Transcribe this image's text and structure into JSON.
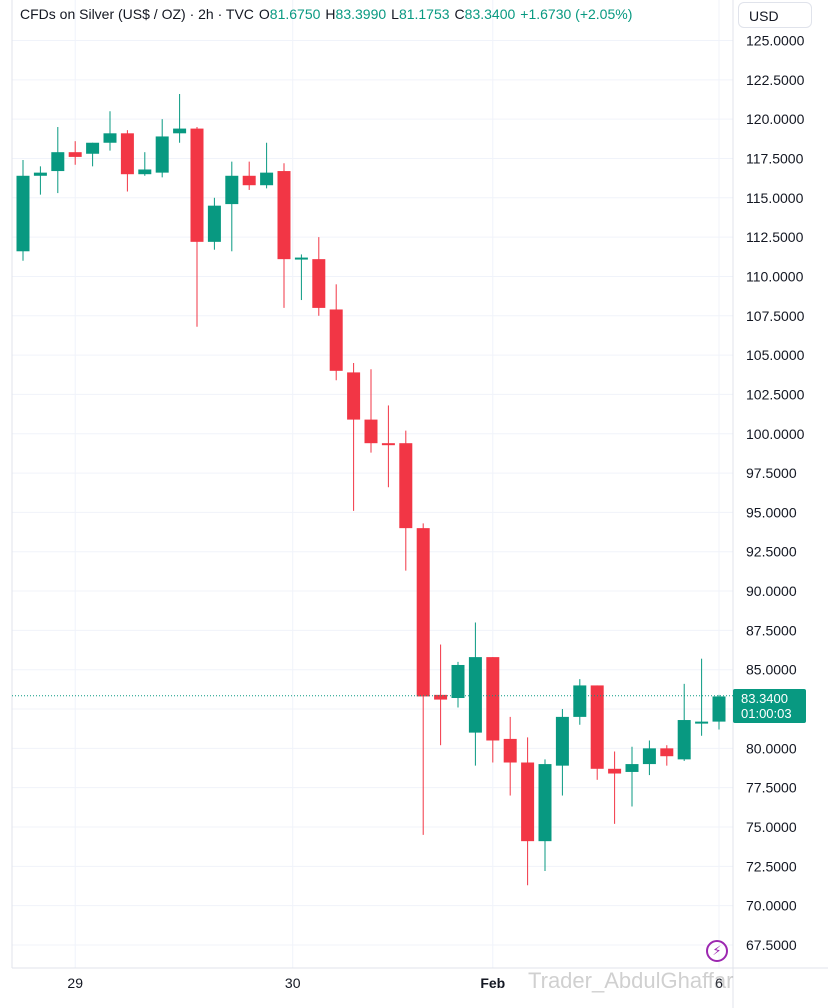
{
  "header": {
    "symbol": "CFDs on Silver (US$ / OZ) · 2h · TVC",
    "open_label": "O",
    "open": "81.6750",
    "high_label": "H",
    "high": "83.3990",
    "low_label": "L",
    "low": "81.1753",
    "close_label": "C",
    "close": "83.3400",
    "change": "+1.6730 (+2.05%)"
  },
  "currency_button": "USD",
  "price_tag": {
    "price": "83.3400",
    "countdown": "01:00:03"
  },
  "watermark": "Trader_AbdulGhaffar",
  "colors": {
    "up": "#089981",
    "down": "#f23645",
    "grid": "#f0f3fa",
    "text": "#131722",
    "accent": "#9c27b0"
  },
  "icons": {
    "alert": "lightning-bolt-icon"
  },
  "chart_data": {
    "type": "candlestick",
    "title": "CFDs on Silver (US$ / OZ) · 2h · TVC",
    "ylim": [
      66.0,
      126.5
    ],
    "y_ticks": [
      "125.0000",
      "122.5000",
      "120.0000",
      "117.5000",
      "115.0000",
      "112.5000",
      "110.0000",
      "107.5000",
      "105.0000",
      "102.5000",
      "100.0000",
      "97.5000",
      "95.0000",
      "92.5000",
      "90.0000",
      "87.5000",
      "85.0000",
      "82.5000",
      "80.0000",
      "77.5000",
      "75.0000",
      "72.5000",
      "70.0000",
      "67.5000"
    ],
    "x_labels": [
      {
        "label": "29",
        "index": 3
      },
      {
        "label": "30",
        "index": 15.5
      },
      {
        "label": "Feb",
        "index": 27
      },
      {
        "label": "6",
        "index": 40
      }
    ],
    "last_price": 83.34,
    "candles": [
      {
        "o": 111.6,
        "h": 117.4,
        "l": 111.0,
        "c": 116.4
      },
      {
        "o": 116.4,
        "h": 117.0,
        "l": 115.2,
        "c": 116.6
      },
      {
        "o": 116.7,
        "h": 119.5,
        "l": 115.3,
        "c": 117.9
      },
      {
        "o": 117.9,
        "h": 118.6,
        "l": 117.1,
        "c": 117.6
      },
      {
        "o": 117.8,
        "h": 118.5,
        "l": 117.0,
        "c": 118.5
      },
      {
        "o": 118.5,
        "h": 120.5,
        "l": 118.0,
        "c": 119.1
      },
      {
        "o": 119.1,
        "h": 119.3,
        "l": 115.4,
        "c": 116.5
      },
      {
        "o": 116.5,
        "h": 117.9,
        "l": 116.4,
        "c": 116.8
      },
      {
        "o": 116.6,
        "h": 120.0,
        "l": 116.3,
        "c": 118.9
      },
      {
        "o": 119.1,
        "h": 121.6,
        "l": 118.5,
        "c": 119.4
      },
      {
        "o": 119.4,
        "h": 119.5,
        "l": 106.8,
        "c": 112.2
      },
      {
        "o": 112.2,
        "h": 115.0,
        "l": 111.7,
        "c": 114.5
      },
      {
        "o": 114.6,
        "h": 117.3,
        "l": 111.6,
        "c": 116.4
      },
      {
        "o": 116.4,
        "h": 117.3,
        "l": 115.5,
        "c": 115.8
      },
      {
        "o": 115.8,
        "h": 118.5,
        "l": 115.6,
        "c": 116.6
      },
      {
        "o": 116.7,
        "h": 117.2,
        "l": 108.0,
        "c": 111.1
      },
      {
        "o": 111.1,
        "h": 111.4,
        "l": 108.5,
        "c": 111.2
      },
      {
        "o": 111.1,
        "h": 112.5,
        "l": 107.5,
        "c": 108.0
      },
      {
        "o": 107.9,
        "h": 109.5,
        "l": 103.4,
        "c": 104.0
      },
      {
        "o": 103.9,
        "h": 104.5,
        "l": 95.1,
        "c": 100.9
      },
      {
        "o": 100.9,
        "h": 104.1,
        "l": 98.8,
        "c": 99.4
      },
      {
        "o": 99.4,
        "h": 101.8,
        "l": 96.6,
        "c": 99.3
      },
      {
        "o": 99.4,
        "h": 100.2,
        "l": 91.3,
        "c": 94.0
      },
      {
        "o": 94.0,
        "h": 94.3,
        "l": 74.5,
        "c": 83.3
      },
      {
        "o": 83.4,
        "h": 86.6,
        "l": 80.2,
        "c": 83.1
      },
      {
        "o": 83.2,
        "h": 85.5,
        "l": 82.6,
        "c": 85.3
      },
      {
        "o": 81.0,
        "h": 88.0,
        "l": 78.9,
        "c": 85.8
      },
      {
        "o": 85.8,
        "h": 85.8,
        "l": 79.1,
        "c": 80.5
      },
      {
        "o": 80.6,
        "h": 82.0,
        "l": 77.0,
        "c": 79.1
      },
      {
        "o": 79.1,
        "h": 80.7,
        "l": 71.3,
        "c": 74.1
      },
      {
        "o": 74.1,
        "h": 79.3,
        "l": 72.2,
        "c": 79.0
      },
      {
        "o": 78.9,
        "h": 82.5,
        "l": 77.0,
        "c": 82.0
      },
      {
        "o": 82.0,
        "h": 84.4,
        "l": 81.5,
        "c": 84.0
      },
      {
        "o": 84.0,
        "h": 84.0,
        "l": 78.0,
        "c": 78.7
      },
      {
        "o": 78.7,
        "h": 79.8,
        "l": 75.2,
        "c": 78.4
      },
      {
        "o": 78.5,
        "h": 80.1,
        "l": 76.3,
        "c": 79.0
      },
      {
        "o": 79.0,
        "h": 80.5,
        "l": 78.3,
        "c": 80.0
      },
      {
        "o": 80.0,
        "h": 80.2,
        "l": 78.9,
        "c": 79.5
      },
      {
        "o": 79.3,
        "h": 84.1,
        "l": 79.2,
        "c": 81.8
      },
      {
        "o": 81.7,
        "h": 85.7,
        "l": 80.8,
        "c": 81.7
      },
      {
        "o": 81.7,
        "h": 83.4,
        "l": 81.2,
        "c": 83.3
      }
    ]
  }
}
